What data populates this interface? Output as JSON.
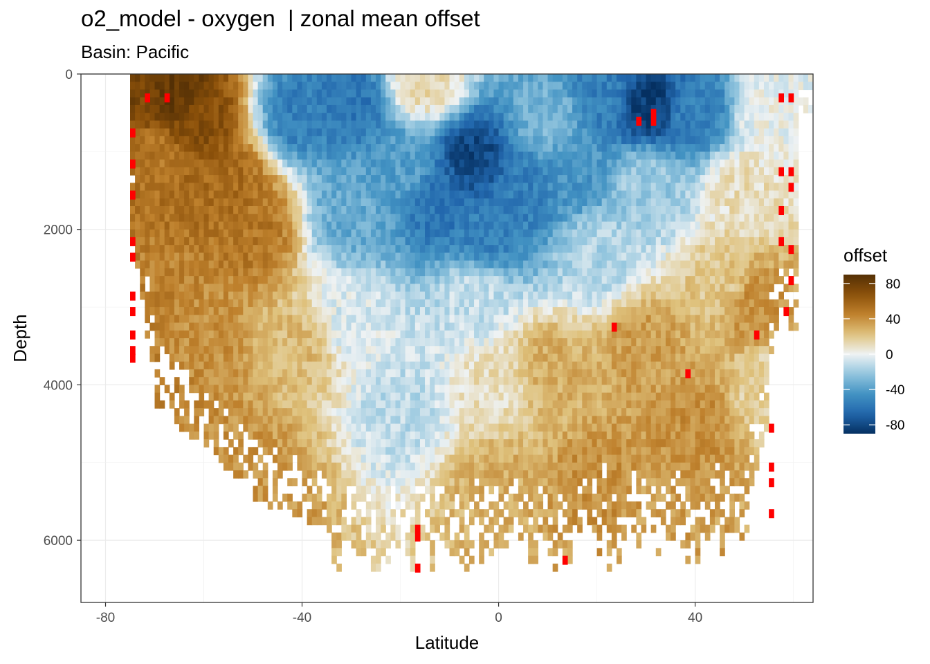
{
  "chart_data": {
    "type": "heatmap",
    "title": "o2_model - oxygen  | zonal mean offset",
    "subtitle": "Basin: Pacific",
    "xlabel": "Latitude",
    "ylabel": "Depth",
    "x_range": [
      -85,
      64
    ],
    "y_range": [
      0,
      6800
    ],
    "y_reversed": true,
    "x_ticks": [
      -80,
      -40,
      0,
      40
    ],
    "y_ticks": [
      0,
      2000,
      4000,
      6000
    ],
    "legend": {
      "title": "offset",
      "ticks": [
        80,
        40,
        0,
        -40,
        -80
      ],
      "range": [
        -90,
        90
      ],
      "colors": [
        "#053061",
        "#2166ac",
        "#4393c3",
        "#92c5de",
        "#eef2f3",
        "#dfc27d",
        "#bf812d",
        "#8c510a",
        "#543005"
      ],
      "outlier_color": "#ff0000"
    },
    "cell_size": {
      "lat": 1,
      "depth": 100
    },
    "anchors": [
      {
        "lat": -72,
        "depth": 300,
        "offset": 75
      },
      {
        "lat": -66,
        "depth": 300,
        "offset": 85
      },
      {
        "lat": -62,
        "depth": 600,
        "offset": 70
      },
      {
        "lat": -70,
        "depth": 1000,
        "offset": 50
      },
      {
        "lat": -55,
        "depth": 1500,
        "offset": 55
      },
      {
        "lat": -50,
        "depth": 2000,
        "offset": 50
      },
      {
        "lat": -72,
        "depth": 3000,
        "offset": 45
      },
      {
        "lat": -60,
        "depth": 3500,
        "offset": 40
      },
      {
        "lat": -70,
        "depth": 4000,
        "offset": 45
      },
      {
        "lat": -60,
        "depth": 5000,
        "offset": 40
      },
      {
        "lat": -48,
        "depth": 5300,
        "offset": 38
      },
      {
        "lat": -40,
        "depth": 500,
        "offset": -55
      },
      {
        "lat": -30,
        "depth": 400,
        "offset": -60
      },
      {
        "lat": -30,
        "depth": 1800,
        "offset": -35
      },
      {
        "lat": -20,
        "depth": 1200,
        "offset": -40
      },
      {
        "lat": -5,
        "depth": 1100,
        "offset": -80
      },
      {
        "lat": -12,
        "depth": 1700,
        "offset": -60
      },
      {
        "lat": -2,
        "depth": 2000,
        "offset": -55
      },
      {
        "lat": 5,
        "depth": 1500,
        "offset": -55
      },
      {
        "lat": 15,
        "depth": 1300,
        "offset": -45
      },
      {
        "lat": 10,
        "depth": 600,
        "offset": -30
      },
      {
        "lat": 30,
        "depth": 400,
        "offset": -85
      },
      {
        "lat": 22,
        "depth": 300,
        "offset": -55
      },
      {
        "lat": 40,
        "depth": 500,
        "offset": -55
      },
      {
        "lat": 30,
        "depth": 1400,
        "offset": -20
      },
      {
        "lat": 20,
        "depth": 2300,
        "offset": -15
      },
      {
        "lat": -5,
        "depth": 2900,
        "offset": -10
      },
      {
        "lat": -30,
        "depth": 3200,
        "offset": -5
      },
      {
        "lat": -20,
        "depth": 4300,
        "offset": -12
      },
      {
        "lat": 0,
        "depth": 4000,
        "offset": 10
      },
      {
        "lat": 10,
        "depth": 3800,
        "offset": 30
      },
      {
        "lat": 30,
        "depth": 3500,
        "offset": 35
      },
      {
        "lat": 40,
        "depth": 4500,
        "offset": 40
      },
      {
        "lat": 45,
        "depth": 2800,
        "offset": 20
      },
      {
        "lat": 35,
        "depth": 5600,
        "offset": 35
      },
      {
        "lat": 0,
        "depth": 5300,
        "offset": 30
      },
      {
        "lat": 50,
        "depth": 1500,
        "offset": 10
      },
      {
        "lat": 52,
        "depth": 3000,
        "offset": 40
      },
      {
        "lat": -15,
        "depth": 100,
        "offset": 12
      },
      {
        "lat": 55,
        "depth": 500,
        "offset": 0
      },
      {
        "lat": -40,
        "depth": 3500,
        "offset": 25
      },
      {
        "lat": 55,
        "depth": 4000,
        "offset": 15
      },
      {
        "lat": 20,
        "depth": 5300,
        "offset": 40
      }
    ],
    "outliers": [
      {
        "lat": -72,
        "depth": 250
      },
      {
        "lat": -68,
        "depth": 250
      },
      {
        "lat": -75,
        "depth": 700
      },
      {
        "lat": -75,
        "depth": 1100
      },
      {
        "lat": -75,
        "depth": 1500
      },
      {
        "lat": -75,
        "depth": 2100
      },
      {
        "lat": -75,
        "depth": 2300
      },
      {
        "lat": -75,
        "depth": 2800
      },
      {
        "lat": -75,
        "depth": 3000
      },
      {
        "lat": -75,
        "depth": 3300
      },
      {
        "lat": -75,
        "depth": 3500
      },
      {
        "lat": -75,
        "depth": 3600
      },
      {
        "lat": -17,
        "depth": 5800
      },
      {
        "lat": -17,
        "depth": 5900
      },
      {
        "lat": -17,
        "depth": 6300
      },
      {
        "lat": 13,
        "depth": 6200
      },
      {
        "lat": 23,
        "depth": 3200
      },
      {
        "lat": 28,
        "depth": 550
      },
      {
        "lat": 31,
        "depth": 450
      },
      {
        "lat": 31,
        "depth": 550
      },
      {
        "lat": 38,
        "depth": 3800
      },
      {
        "lat": 52,
        "depth": 3300
      },
      {
        "lat": 55,
        "depth": 4500
      },
      {
        "lat": 55,
        "depth": 5000
      },
      {
        "lat": 55,
        "depth": 5200
      },
      {
        "lat": 55,
        "depth": 5600
      },
      {
        "lat": 57,
        "depth": 250
      },
      {
        "lat": 57,
        "depth": 1200
      },
      {
        "lat": 57,
        "depth": 1700
      },
      {
        "lat": 57,
        "depth": 2100
      },
      {
        "lat": 58,
        "depth": 3000
      },
      {
        "lat": 59,
        "depth": 250
      },
      {
        "lat": 59,
        "depth": 1200
      },
      {
        "lat": 59,
        "depth": 1400
      },
      {
        "lat": 59,
        "depth": 2200
      },
      {
        "lat": 59,
        "depth": 2600
      }
    ]
  }
}
